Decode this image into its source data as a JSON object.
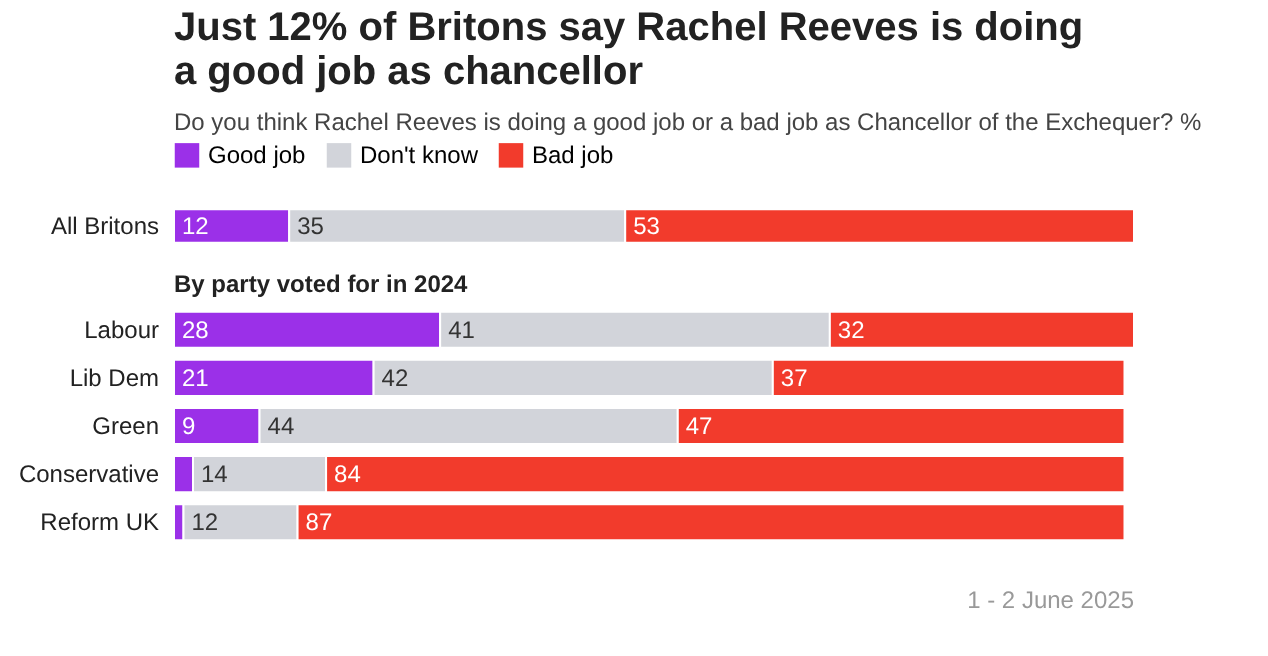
{
  "chart_data": [
    {
      "type": "bar",
      "stacked": true,
      "orientation": "horizontal",
      "title": "Just 12% of Britons say Rachel Reeves is doing a good job as chancellor",
      "subtitle": "Do you think Rachel Reeves is doing a good job or a bad job as Chancellor of the Exchequer? %",
      "categories": [
        "All Britons"
      ],
      "tick_labels": "y",
      "legend": "top",
      "data_labels": true,
      "series": [
        {
          "name": "Good job",
          "color": "#9b30e8",
          "values": [
            12
          ]
        },
        {
          "name": "Don't know",
          "color": "#d2d4da",
          "values": [
            35
          ]
        },
        {
          "name": "Bad job",
          "color": "#f23b2c",
          "values": [
            53
          ]
        }
      ]
    },
    {
      "type": "bar",
      "stacked": true,
      "orientation": "horizontal",
      "title": "By party voted for in 2024",
      "categories": [
        "Labour",
        "Lib Dem",
        "Green",
        "Conservative",
        "Reform UK"
      ],
      "tick_labels": "y",
      "annotations": [
        "1 - 2 June 2025"
      ],
      "series": [
        {
          "color": "#9b30e8",
          "values": [
            28,
            21,
            9,
            2,
            1
          ],
          "value_labels": [
            "28",
            "21",
            "9",
            null,
            null
          ]
        },
        {
          "color": "#d2d4da",
          "values": [
            41,
            42,
            44,
            14,
            12
          ],
          "value_labels": [
            "41",
            "42",
            "44",
            "14",
            "12"
          ]
        },
        {
          "color": "#f23b2c",
          "values": [
            32,
            37,
            47,
            84,
            87
          ],
          "value_labels": [
            "32",
            "37",
            "47",
            "84",
            "87"
          ]
        }
      ]
    }
  ]
}
